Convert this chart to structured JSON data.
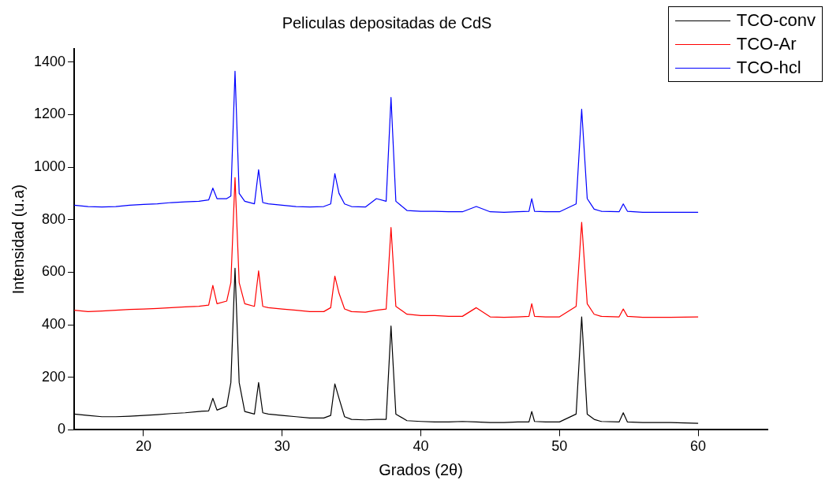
{
  "chart_data": {
    "type": "line",
    "title": "Peliculas depositadas de CdS",
    "xlabel": "Grados (2θ)",
    "ylabel": "Intensidad (u.a)",
    "x": [
      15,
      16,
      17,
      18,
      19,
      20,
      21,
      22,
      23,
      24,
      24.7,
      25.0,
      25.3,
      26.0,
      26.3,
      26.6,
      26.9,
      27.3,
      28.0,
      28.3,
      28.6,
      29,
      30,
      31,
      32,
      33,
      33.5,
      33.8,
      34.1,
      34.5,
      35,
      36,
      36.8,
      37.5,
      37.85,
      38.2,
      39,
      40,
      41,
      42,
      43,
      44,
      45,
      46,
      47,
      47.8,
      48.0,
      48.2,
      49,
      50,
      51.2,
      51.6,
      52.0,
      52.5,
      53,
      54.3,
      54.6,
      54.9,
      56,
      58,
      60
    ],
    "series": [
      {
        "name": "TCO-conv",
        "color": "#000000",
        "values": [
          60,
          55,
          50,
          50,
          52,
          55,
          58,
          62,
          65,
          70,
          72,
          120,
          75,
          90,
          180,
          615,
          180,
          70,
          60,
          180,
          65,
          60,
          55,
          50,
          45,
          45,
          55,
          175,
          120,
          50,
          40,
          38,
          40,
          40,
          395,
          60,
          35,
          32,
          30,
          30,
          32,
          30,
          28,
          28,
          30,
          30,
          70,
          32,
          30,
          30,
          60,
          430,
          60,
          40,
          32,
          30,
          65,
          30,
          28,
          28,
          25
        ]
      },
      {
        "name": "TCO-Ar",
        "color": "#ff0000",
        "values": [
          455,
          450,
          452,
          455,
          458,
          460,
          462,
          465,
          468,
          470,
          475,
          550,
          480,
          490,
          560,
          960,
          560,
          480,
          470,
          605,
          470,
          465,
          460,
          455,
          450,
          450,
          465,
          585,
          520,
          460,
          450,
          448,
          455,
          460,
          770,
          470,
          440,
          435,
          435,
          432,
          432,
          465,
          430,
          428,
          430,
          432,
          480,
          432,
          430,
          430,
          470,
          790,
          480,
          440,
          432,
          430,
          460,
          432,
          428,
          428,
          430
        ]
      },
      {
        "name": "TCO-hcl",
        "color": "#0000ff",
        "values": [
          855,
          850,
          848,
          850,
          855,
          858,
          860,
          865,
          868,
          870,
          875,
          920,
          880,
          880,
          890,
          1365,
          900,
          870,
          860,
          990,
          865,
          860,
          855,
          850,
          848,
          850,
          860,
          975,
          900,
          860,
          850,
          848,
          880,
          870,
          1265,
          870,
          835,
          832,
          832,
          830,
          830,
          850,
          830,
          828,
          830,
          832,
          880,
          832,
          830,
          830,
          860,
          1220,
          880,
          840,
          832,
          830,
          860,
          832,
          828,
          828,
          828
        ]
      }
    ],
    "xlim": [
      15,
      65
    ],
    "xticks": [
      20,
      30,
      40,
      50,
      60
    ],
    "ylim": [
      0,
      1450
    ],
    "yticks": [
      0,
      200,
      400,
      600,
      800,
      1000,
      1200,
      1400
    ],
    "grid": false,
    "legend": "top right",
    "marker": "none",
    "line_style": "solid"
  }
}
